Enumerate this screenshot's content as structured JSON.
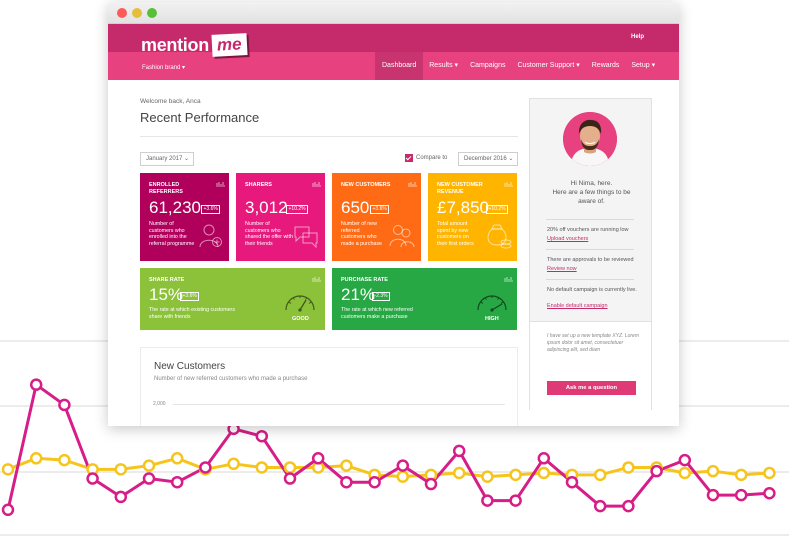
{
  "colors": {
    "brand_dark": "#c52b6b",
    "brand_light": "#e7417f",
    "series_pink": "#d61d88",
    "series_yellow": "#f6c51b",
    "tile_purple": "#b0005c",
    "tile_magenta": "#e7197d",
    "tile_orange": "#ff6b14",
    "tile_yellow": "#ffb400",
    "tile_lime": "#8cc13a",
    "tile_green": "#27a844"
  },
  "logo": {
    "word1": "mention",
    "word2": "me"
  },
  "header": {
    "brand_select": "Fashion brand ▾",
    "help": "Help"
  },
  "nav": [
    {
      "label": "Dashboard",
      "active": true
    },
    {
      "label": "Results ▾"
    },
    {
      "label": "Campaigns"
    },
    {
      "label": "Customer Support ▾"
    },
    {
      "label": "Rewards"
    },
    {
      "label": "Setup ▾"
    }
  ],
  "main": {
    "welcome": "Welcome back, Anca",
    "title": "Recent Performance",
    "date_from": "January 2017 ⌄",
    "compare_label": "Compare to",
    "date_to": "December 2016 ⌄"
  },
  "tiles": {
    "enrolled": {
      "label": "Enrolled Referrers",
      "value": "61,230",
      "badge": "+3.6%",
      "desc": "Number of customers who enrolled into the referral programme"
    },
    "sharers": {
      "label": "Sharers",
      "value": "3,012",
      "badge": "+10.2%",
      "desc": "Number of customers who shared the offer with their friends"
    },
    "new_customers": {
      "label": "New Customers",
      "value": "650",
      "badge": "+3.6%",
      "desc": "Number of new referred customers who made a purchase"
    },
    "revenue": {
      "label": "New Customer Revenue",
      "value": "£7,850",
      "badge": "+10.2%",
      "desc": "Total amount spent by new customers on their first orders"
    },
    "share_rate": {
      "label": "Share Rate",
      "value": "15%",
      "badge": "+3.6%",
      "desc": "The rate at which existing customers share with friends",
      "gauge": "GOOD"
    },
    "purchase_rate": {
      "label": "Purchase Rate",
      "value": "21%",
      "badge": "-2.3%",
      "desc": "The rate at which new referred customers make a purchase",
      "gauge": "HIGH"
    }
  },
  "new_customers_panel": {
    "title": "New Customers",
    "subtitle": "Number of new referred customers who made a purchase",
    "tick": "2,000"
  },
  "sidebar": {
    "greeting_1": "Hi Nima, here.",
    "greeting_2": "Here are a few things to be",
    "greeting_3": "aware of.",
    "note1": "20% off vouchers are running low",
    "link1": "Upload vouchers",
    "note2": "There are approvals to be reviewed",
    "link2": "Review now",
    "note3": "No default campaign is currently live.",
    "link3": "Enable default campaign",
    "quote": "I have set up a new template XYZ. Lorem ipsum dolor sit amet, consectetuer adipiscing elit, sed diam",
    "button": "Ask me a question"
  },
  "chart_data": {
    "type": "line",
    "x": [
      0,
      1,
      2,
      3,
      4,
      5,
      6,
      7,
      8,
      9,
      10,
      11,
      12,
      13,
      14,
      15,
      16,
      17,
      18,
      19,
      20,
      21,
      22,
      23,
      24,
      25,
      26,
      27
    ],
    "series": [
      {
        "values": [
          5,
          73,
          62,
          22,
          12,
          22,
          20,
          28,
          49,
          45,
          22,
          33,
          20,
          20,
          29,
          19,
          37,
          10,
          10,
          33,
          20,
          7,
          7,
          26,
          32,
          13,
          13,
          14
        ]
      },
      {
        "values": [
          27,
          33,
          32,
          27,
          27,
          29,
          33,
          27,
          30,
          28,
          28,
          28,
          29,
          24,
          23,
          24,
          25,
          23,
          24,
          25,
          24,
          24,
          28,
          28,
          25,
          26,
          24,
          25
        ]
      }
    ]
  }
}
